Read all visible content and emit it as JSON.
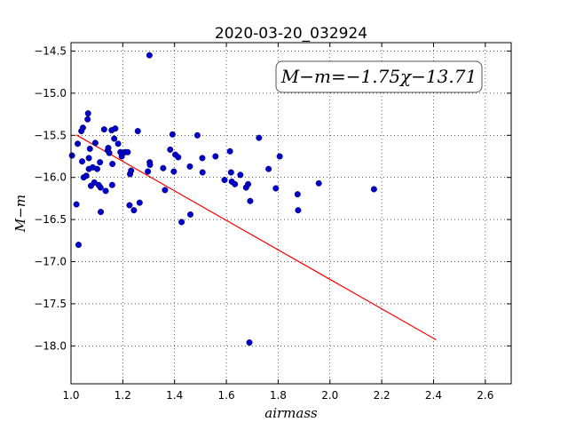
{
  "chart_data": {
    "type": "scatter",
    "title": "2020-03-20_032924",
    "xlabel": "airmass",
    "ylabel": "M−m",
    "xlim": [
      1.0,
      2.7
    ],
    "ylim": [
      -14.4,
      -18.45
    ],
    "y_axis_inverted": true,
    "grid": true,
    "xticks": [
      1.0,
      1.2,
      1.4,
      1.6,
      1.8,
      2.0,
      2.2,
      2.4,
      2.6
    ],
    "xtick_labels": [
      "1.0",
      "1.2",
      "1.4",
      "1.6",
      "1.8",
      "2.0",
      "2.2",
      "2.4",
      "2.6"
    ],
    "yticks": [
      -14.5,
      -15.0,
      -15.5,
      -16.0,
      -16.5,
      -17.0,
      -17.5,
      -18.0
    ],
    "ytick_labels": [
      "−14.5",
      "−15.0",
      "−15.5",
      "−16.0",
      "−16.5",
      "−17.0",
      "−17.5",
      "−18.0"
    ],
    "annotation": "M−m=−1.75χ−13.71",
    "fit": {
      "slope": -1.75,
      "intercept": -13.71,
      "x_range": [
        1.02,
        2.41
      ],
      "color": "#ff0000"
    },
    "marker_color": "#0000cc",
    "points": [
      [
        1.004,
        -15.74
      ],
      [
        1.021,
        -16.32
      ],
      [
        1.026,
        -15.6
      ],
      [
        1.029,
        -16.8
      ],
      [
        1.04,
        -15.45
      ],
      [
        1.046,
        -15.41
      ],
      [
        1.043,
        -15.81
      ],
      [
        1.049,
        -16.0
      ],
      [
        1.059,
        -15.98
      ],
      [
        1.064,
        -15.31
      ],
      [
        1.066,
        -15.24
      ],
      [
        1.069,
        -15.77
      ],
      [
        1.069,
        -15.9
      ],
      [
        1.073,
        -15.66
      ],
      [
        1.077,
        -16.1
      ],
      [
        1.084,
        -15.88
      ],
      [
        1.09,
        -16.06
      ],
      [
        1.094,
        -15.59
      ],
      [
        1.101,
        -15.9
      ],
      [
        1.107,
        -16.09
      ],
      [
        1.112,
        -15.82
      ],
      [
        1.114,
        -16.12
      ],
      [
        1.115,
        -16.41
      ],
      [
        1.128,
        -15.43
      ],
      [
        1.134,
        -16.16
      ],
      [
        1.142,
        -15.68
      ],
      [
        1.144,
        -15.65
      ],
      [
        1.148,
        -15.71
      ],
      [
        1.157,
        -15.44
      ],
      [
        1.159,
        -16.09
      ],
      [
        1.16,
        -15.84
      ],
      [
        1.167,
        -15.54
      ],
      [
        1.171,
        -15.42
      ],
      [
        1.182,
        -15.6
      ],
      [
        1.191,
        -15.7
      ],
      [
        1.196,
        -15.75
      ],
      [
        1.209,
        -15.7
      ],
      [
        1.219,
        -15.7
      ],
      [
        1.226,
        -16.33
      ],
      [
        1.228,
        -15.96
      ],
      [
        1.232,
        -15.92
      ],
      [
        1.243,
        -16.39
      ],
      [
        1.258,
        -15.45
      ],
      [
        1.265,
        -16.3
      ],
      [
        1.297,
        -15.93
      ],
      [
        1.304,
        -15.82
      ],
      [
        1.305,
        -15.85
      ],
      [
        1.303,
        -14.55
      ],
      [
        1.356,
        -15.89
      ],
      [
        1.363,
        -16.15
      ],
      [
        1.383,
        -15.67
      ],
      [
        1.392,
        -15.49
      ],
      [
        1.397,
        -15.93
      ],
      [
        1.403,
        -15.73
      ],
      [
        1.414,
        -15.76
      ],
      [
        1.427,
        -16.53
      ],
      [
        1.459,
        -15.87
      ],
      [
        1.461,
        -16.44
      ],
      [
        1.488,
        -15.5
      ],
      [
        1.507,
        -15.77
      ],
      [
        1.508,
        -15.94
      ],
      [
        1.558,
        -15.75
      ],
      [
        1.593,
        -16.03
      ],
      [
        1.614,
        -15.69
      ],
      [
        1.618,
        -15.94
      ],
      [
        1.621,
        -16.05
      ],
      [
        1.633,
        -16.08
      ],
      [
        1.654,
        -15.97
      ],
      [
        1.676,
        -16.12
      ],
      [
        1.684,
        -16.08
      ],
      [
        1.689,
        -17.96
      ],
      [
        1.692,
        -16.28
      ],
      [
        1.726,
        -15.53
      ],
      [
        1.763,
        -15.9
      ],
      [
        1.791,
        -16.13
      ],
      [
        1.806,
        -15.75
      ],
      [
        1.875,
        -16.2
      ],
      [
        1.877,
        -16.39
      ],
      [
        1.957,
        -16.07
      ],
      [
        2.17,
        -16.14
      ]
    ]
  }
}
